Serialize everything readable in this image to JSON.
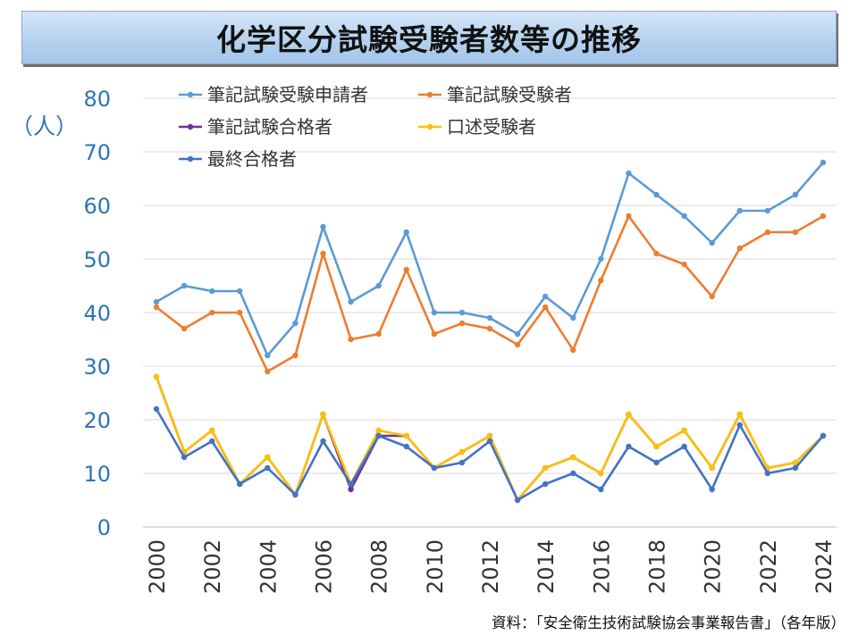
{
  "title": "化学区分試験受験者数等の推移",
  "unit_label": "（人）",
  "source": "資料：「安全衛生技術試験協会事業報告書」（各年版）",
  "colors": {
    "applicants": "#5b9bd5",
    "examinees": "#ed7d31",
    "written_pass": "#7030a0",
    "oral_examinees": "#ffc000",
    "final_pass": "#4472c4",
    "tick_y": "#2e75b6",
    "grid": "#d9d9d9"
  },
  "chart_data": {
    "type": "line",
    "title": "化学区分試験受験者数等の推移",
    "ylabel": "（人）",
    "xlabel": "",
    "ylim": [
      0,
      80
    ],
    "yticks": [
      0,
      10,
      20,
      30,
      40,
      50,
      60,
      70,
      80
    ],
    "x": [
      2000,
      2001,
      2002,
      2003,
      2004,
      2005,
      2006,
      2007,
      2008,
      2009,
      2010,
      2011,
      2012,
      2013,
      2014,
      2015,
      2016,
      2017,
      2018,
      2019,
      2020,
      2021,
      2022,
      2023,
      2024
    ],
    "xtick_labels": [
      "2000",
      "2002",
      "2004",
      "2006",
      "2008",
      "2010",
      "2012",
      "2014",
      "2016",
      "2018",
      "2020",
      "2022",
      "2024"
    ],
    "legend_position": "top-left",
    "series": [
      {
        "key": "applicants",
        "name": "筆記試験受験申請者",
        "color": "#5b9bd5",
        "values": [
          42,
          45,
          44,
          44,
          32,
          38,
          56,
          42,
          45,
          55,
          40,
          40,
          39,
          36,
          43,
          39,
          50,
          66,
          62,
          58,
          53,
          59,
          59,
          62,
          68
        ]
      },
      {
        "key": "examinees",
        "name": "筆記試験受験者",
        "color": "#ed7d31",
        "values": [
          41,
          37,
          40,
          40,
          29,
          32,
          51,
          35,
          36,
          48,
          36,
          38,
          37,
          34,
          41,
          33,
          46,
          58,
          51,
          49,
          43,
          52,
          55,
          55,
          58
        ]
      },
      {
        "key": "written_pass",
        "name": "筆記試験合格者",
        "color": "#7030a0",
        "values": [
          28,
          14,
          18,
          8,
          13,
          6,
          21,
          7,
          17,
          17,
          11,
          14,
          17,
          5,
          11,
          13,
          10,
          21,
          15,
          18,
          11,
          21,
          11,
          12,
          17
        ]
      },
      {
        "key": "oral_examinees",
        "name": "口述受験者",
        "color": "#ffc000",
        "values": [
          28,
          14,
          18,
          8,
          13,
          6,
          21,
          8,
          18,
          17,
          11,
          14,
          17,
          5,
          11,
          13,
          10,
          21,
          15,
          18,
          11,
          21,
          11,
          12,
          17
        ]
      },
      {
        "key": "final_pass",
        "name": "最終合格者",
        "color": "#4472c4",
        "values": [
          22,
          13,
          16,
          8,
          11,
          6,
          16,
          8,
          17,
          15,
          11,
          12,
          16,
          5,
          8,
          10,
          7,
          15,
          12,
          15,
          7,
          19,
          10,
          11,
          17
        ]
      }
    ]
  }
}
